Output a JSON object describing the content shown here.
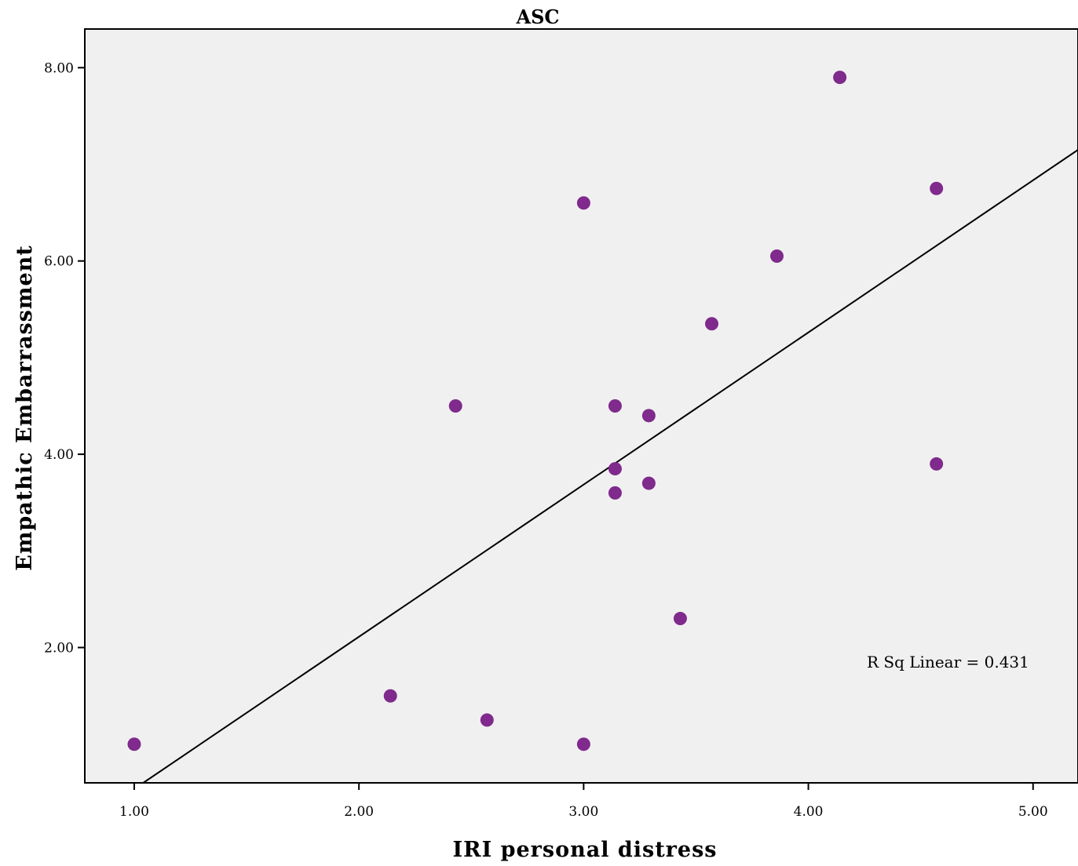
{
  "chart_data": {
    "type": "scatter",
    "title": "ASC",
    "xlabel": "IRI personal distress",
    "ylabel": "Empathic Embarrassment",
    "xlim": [
      0.78,
      5.2
    ],
    "ylim": [
      0.6,
      8.4
    ],
    "xticks": [
      1.0,
      2.0,
      3.0,
      4.0,
      5.0
    ],
    "xtick_labels": [
      "1.00",
      "2.00",
      "3.00",
      "4.00",
      "5.00"
    ],
    "yticks": [
      2.0,
      4.0,
      6.0,
      8.0
    ],
    "ytick_labels": [
      "2.00",
      "4.00",
      "6.00",
      "8.00"
    ],
    "grid": false,
    "background_color": "#f0f0f0",
    "point_color": "#7f2a8c",
    "line_color": "#000000",
    "points": [
      {
        "x": 1.0,
        "y": 1.0
      },
      {
        "x": 2.14,
        "y": 1.5
      },
      {
        "x": 2.43,
        "y": 4.5
      },
      {
        "x": 2.57,
        "y": 1.25
      },
      {
        "x": 3.0,
        "y": 6.6
      },
      {
        "x": 3.0,
        "y": 1.0
      },
      {
        "x": 3.14,
        "y": 4.5
      },
      {
        "x": 3.14,
        "y": 3.85
      },
      {
        "x": 3.14,
        "y": 3.6
      },
      {
        "x": 3.29,
        "y": 4.4
      },
      {
        "x": 3.29,
        "y": 3.7
      },
      {
        "x": 3.43,
        "y": 2.3
      },
      {
        "x": 3.57,
        "y": 5.35
      },
      {
        "x": 3.86,
        "y": 6.05
      },
      {
        "x": 4.14,
        "y": 7.9
      },
      {
        "x": 4.57,
        "y": 6.75
      },
      {
        "x": 4.57,
        "y": 3.9
      }
    ],
    "fit_line": {
      "type": "linear",
      "x": [
        1.04,
        5.2
      ],
      "y": [
        0.6,
        7.15
      ]
    },
    "annotation": "R Sq Linear = 0.431"
  }
}
